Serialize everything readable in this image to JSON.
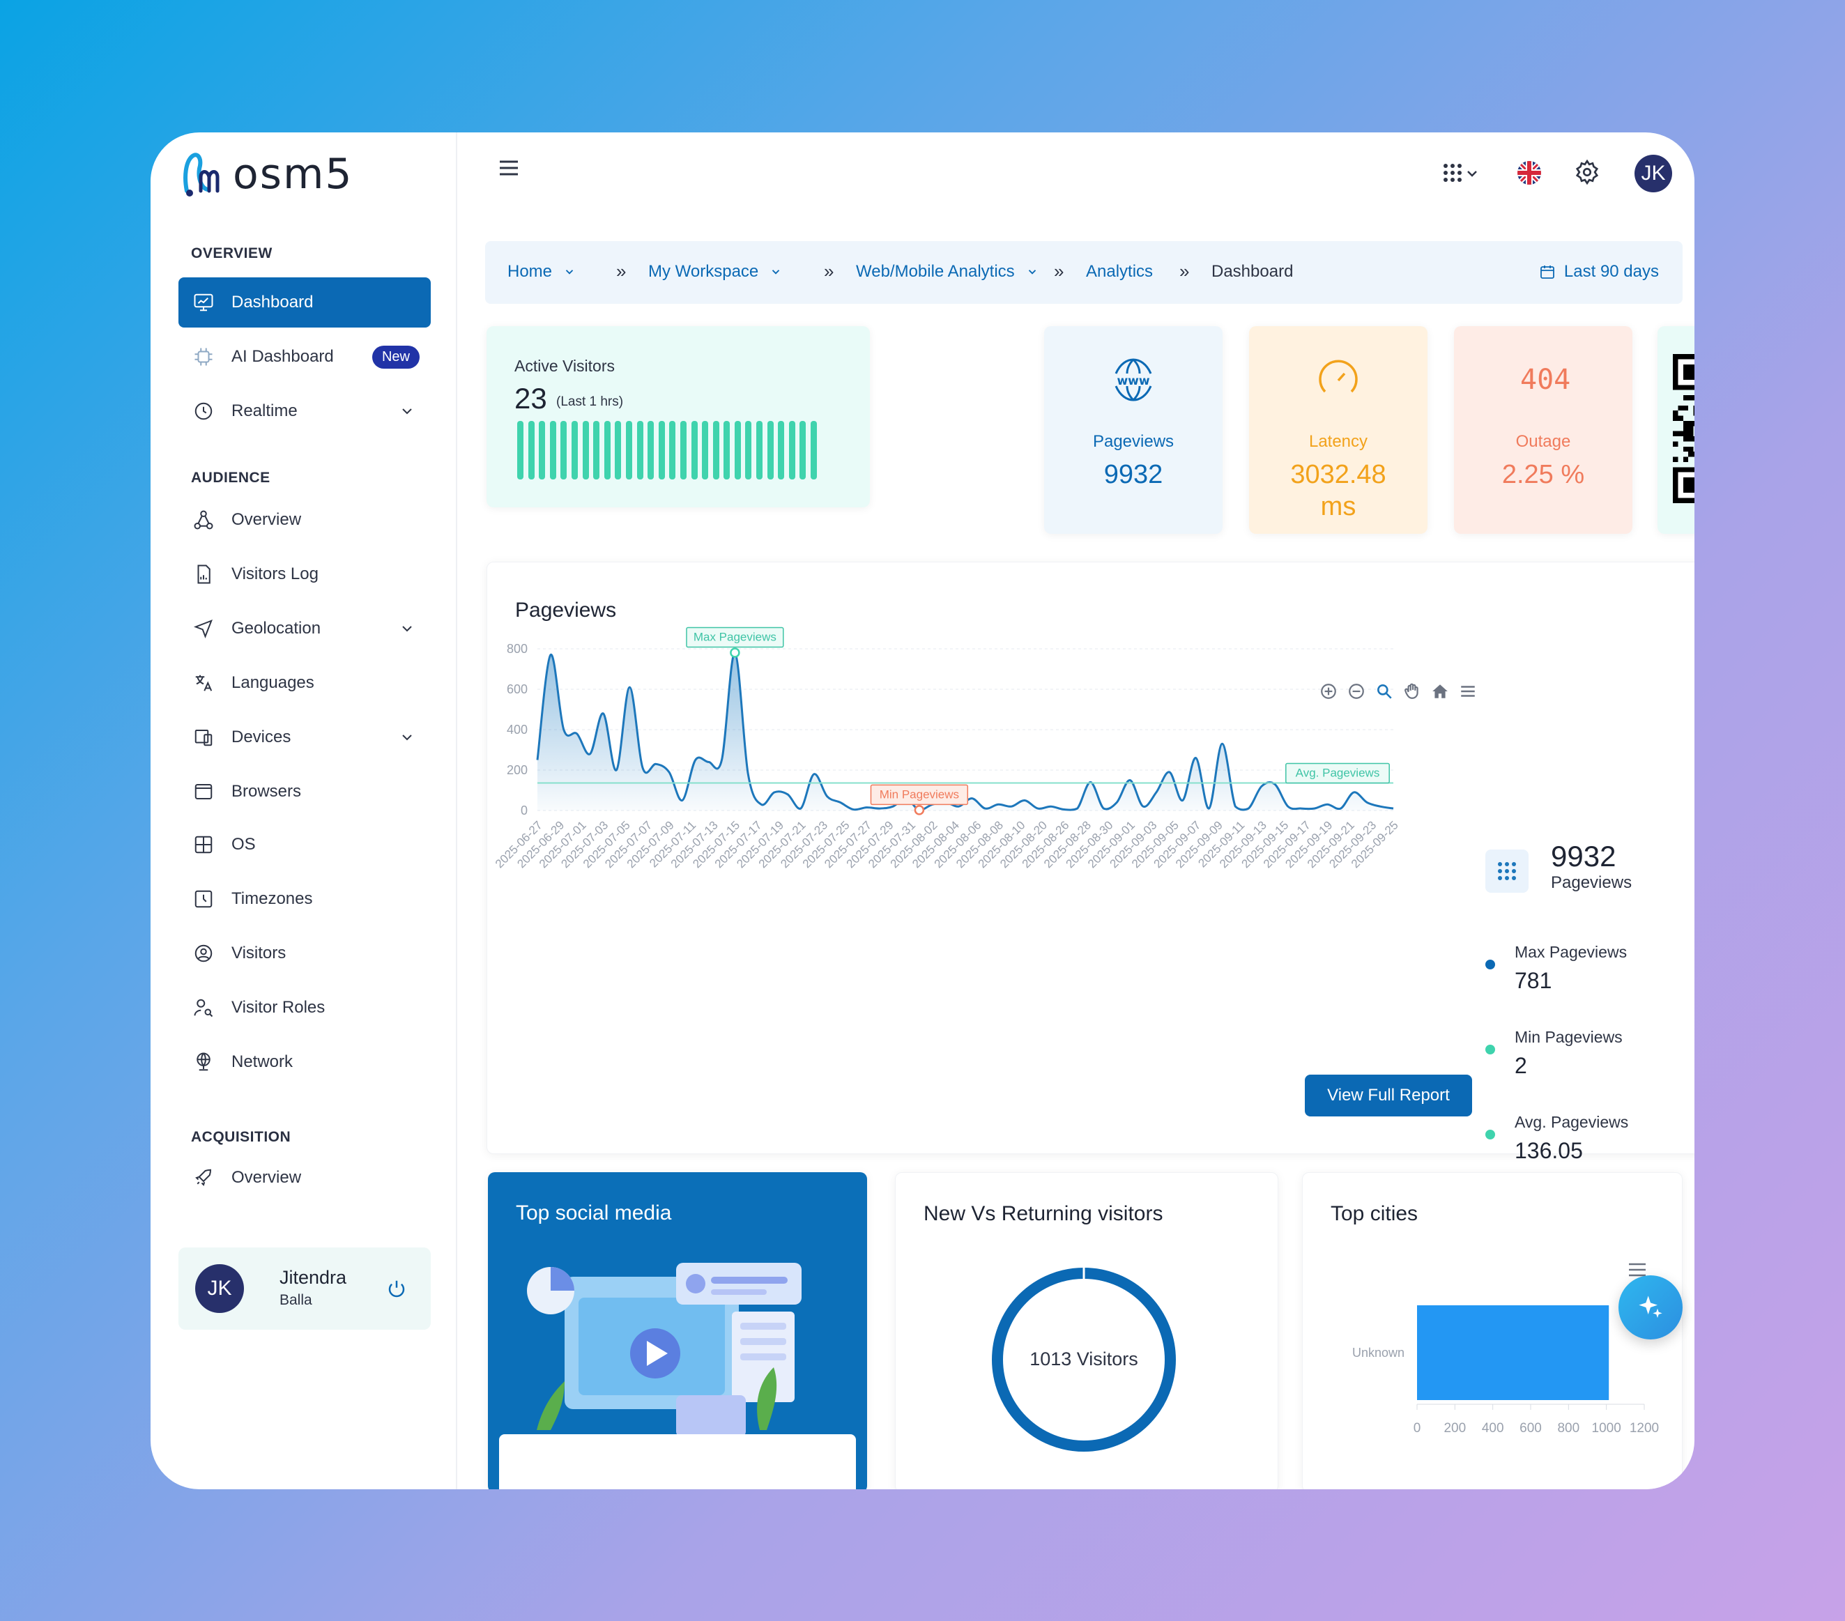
{
  "app": {
    "logo_text": "osm5"
  },
  "sidebar": {
    "sections": {
      "overview": "OVERVIEW",
      "audience": "AUDIENCE",
      "acquisition": "ACQUISITION"
    },
    "items": [
      {
        "label": "Dashboard",
        "icon": "monitor-chart-icon"
      },
      {
        "label": "AI Dashboard",
        "icon": "ai-chip-icon",
        "badge": "New"
      },
      {
        "label": "Realtime",
        "icon": "clock-icon"
      },
      {
        "label": "Overview",
        "icon": "hierarchy-icon"
      },
      {
        "label": "Visitors Log",
        "icon": "file-chart-icon"
      },
      {
        "label": "Geolocation",
        "icon": "navigation-icon"
      },
      {
        "label": "Languages",
        "icon": "translate-icon"
      },
      {
        "label": "Devices",
        "icon": "devices-icon"
      },
      {
        "label": "Browsers",
        "icon": "browser-icon"
      },
      {
        "label": "OS",
        "icon": "grid-icon"
      },
      {
        "label": "Timezones",
        "icon": "timezone-icon"
      },
      {
        "label": "Visitors",
        "icon": "user-circle-icon"
      },
      {
        "label": "Visitor Roles",
        "icon": "user-search-icon"
      },
      {
        "label": "Network",
        "icon": "globe-network-icon"
      },
      {
        "label": "Overview",
        "icon": "rocket-icon"
      }
    ],
    "user": {
      "initials": "JK",
      "name": "Jitendra",
      "surname": "Balla"
    }
  },
  "header": {
    "avatar_initials": "JK"
  },
  "breadcrumb": {
    "items": [
      "Home",
      "My Workspace",
      "Web/Mobile Analytics",
      "Analytics",
      "Dashboard"
    ],
    "separator": "»",
    "range": "Last 90 days"
  },
  "stats": {
    "active": {
      "label": "Active Visitors",
      "value": "23",
      "sub": "(Last 1 hrs)"
    },
    "pageviews": {
      "label": "Pageviews",
      "value": "9932"
    },
    "latency": {
      "label": "Latency",
      "value": "3032.48",
      "unit": "ms"
    },
    "outage": {
      "label": "Outage",
      "value": "2.25 %",
      "icon_text": "404"
    }
  },
  "pageviews_panel": {
    "title": "Pageviews",
    "total": "9932",
    "total_label": "Pageviews",
    "max_label": "Max Pageviews",
    "max_value": "781",
    "min_label": "Min Pageviews",
    "min_value": "2",
    "avg_label": "Avg. Pageviews",
    "avg_value": "136.05",
    "report_button": "View Full Report"
  },
  "chart_data": {
    "type": "area",
    "y_ticks": [
      "0",
      "200",
      "400",
      "600",
      "800"
    ],
    "ylim": [
      0,
      800
    ],
    "annotations": [
      "Max Pageviews",
      "Min Pageviews",
      "Avg. Pageviews"
    ],
    "avg": 136.05,
    "x_labels": [
      "2025-06-27",
      "2025-06-29",
      "2025-07-01",
      "2025-07-03",
      "2025-07-05",
      "2025-07-07",
      "2025-07-09",
      "2025-07-11",
      "2025-07-13",
      "2025-07-15",
      "2025-07-17",
      "2025-07-19",
      "2025-07-21",
      "2025-07-23",
      "2025-07-25",
      "2025-07-27",
      "2025-07-29",
      "2025-07-31",
      "2025-08-02",
      "2025-08-04",
      "2025-08-06",
      "2025-08-08",
      "2025-08-10",
      "2025-08-20",
      "2025-08-26",
      "2025-08-28",
      "2025-08-30",
      "2025-09-01",
      "2025-09-03",
      "2025-09-05",
      "2025-09-07",
      "2025-09-09",
      "2025-09-11",
      "2025-09-13",
      "2025-09-15",
      "2025-09-17",
      "2025-09-19",
      "2025-09-21",
      "2025-09-23",
      "2025-09-25"
    ],
    "values": [
      250,
      770,
      400,
      380,
      280,
      480,
      200,
      610,
      210,
      230,
      190,
      50,
      250,
      240,
      250,
      781,
      180,
      30,
      90,
      80,
      10,
      180,
      70,
      40,
      5,
      15,
      10,
      20,
      60,
      2,
      30,
      40,
      20,
      60,
      10,
      30,
      20,
      50,
      10,
      20,
      5,
      10,
      140,
      10,
      40,
      150,
      20,
      90,
      190,
      50,
      260,
      10,
      330,
      20,
      10,
      120,
      130,
      20,
      10,
      10,
      30,
      10,
      90,
      40,
      20,
      10
    ]
  },
  "bottom": {
    "social": {
      "title": "Top social media"
    },
    "nvr": {
      "title": "New Vs Returning visitors",
      "center": "1013 Visitors"
    },
    "cities": {
      "title": "Top cities",
      "chart_data": {
        "type": "bar",
        "orientation": "horizontal",
        "categories": [
          "Unknown"
        ],
        "values": [
          1013
        ],
        "x_ticks": [
          "0",
          "200",
          "400",
          "600",
          "800",
          "1000",
          "1200"
        ],
        "xlim": [
          0,
          1200
        ]
      }
    }
  },
  "colors": {
    "primary": "#0b69b4",
    "accent_green": "#3fd3ad",
    "latency": "#f2a21b",
    "outage": "#f07b5c"
  }
}
